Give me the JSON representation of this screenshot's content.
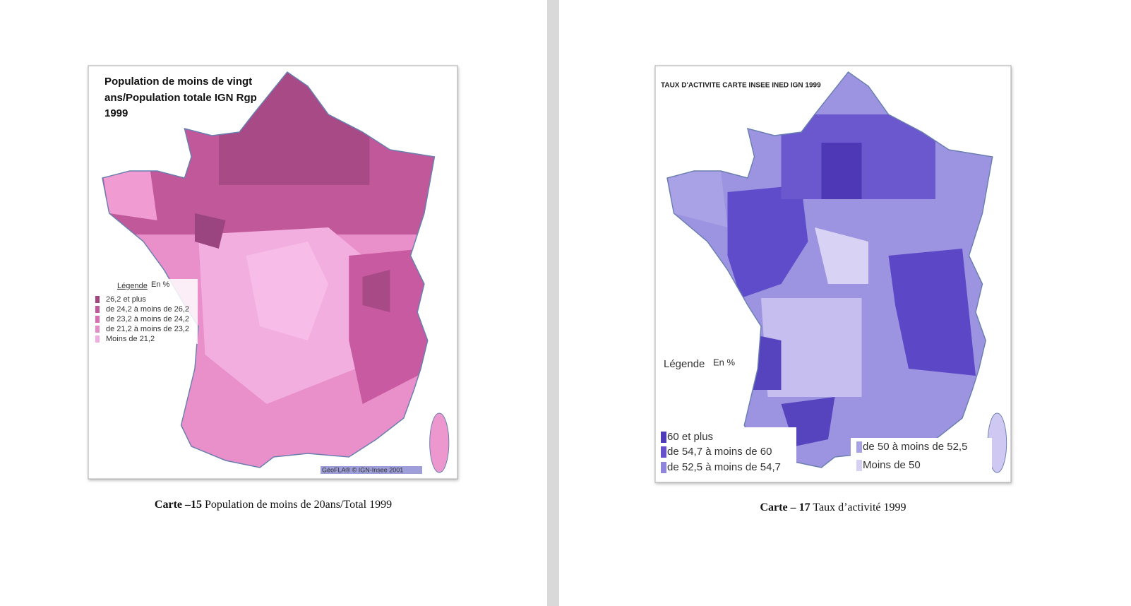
{
  "left_figure": {
    "title_lines": [
      "Population de moins de vingt",
      "ans/Population totale IGN Rgp",
      "1999"
    ],
    "legend_heading": "Légende",
    "legend_unit": "En %",
    "legend_items": [
      "26,2 et plus",
      "de 24,2 à moins de 26,2",
      "de 23,2 à moins de 24,2",
      "de 21,2 à moins de 23,2",
      "Moins de 21,2"
    ],
    "credit": "GéoFLA® © IGN-Insee 2001",
    "caption_label": "Carte –15",
    "caption_text": "Population de moins de 20ans/Total 1999"
  },
  "right_figure": {
    "title": "TAUX D'ACTIVITE CARTE INSEE INED IGN 1999",
    "legend_heading": "Légende",
    "legend_unit": "En %",
    "legend_items": [
      "60 et plus",
      "de 54,7 à moins de 60",
      "de 52,5 à moins de 54,7",
      "de 50 à moins de 52,5",
      "Moins de 50"
    ],
    "caption_label": "Carte – 17",
    "caption_text": "Taux d’activité 1999"
  }
}
